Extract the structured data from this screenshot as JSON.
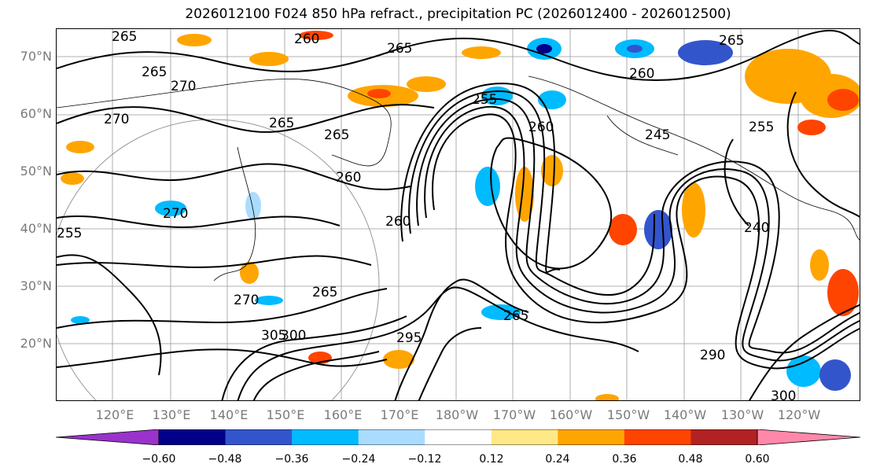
{
  "title": "2026012100 F024 850 hPa refract., precipitation PC (2026012400 - 2026012500)",
  "lat_labels": [
    "70°N",
    "60°N",
    "50°N",
    "40°N",
    "30°N",
    "20°N"
  ],
  "lon_labels": [
    "120°E",
    "130°E",
    "140°E",
    "150°E",
    "160°E",
    "170°E",
    "180°W",
    "170°W",
    "160°W",
    "150°W",
    "140°W",
    "130°W",
    "120°W"
  ],
  "contour_labels": [
    "265",
    "260",
    "265",
    "265",
    "270",
    "270",
    "265",
    "265",
    "260",
    "255",
    "270",
    "260",
    "255",
    "260",
    "245",
    "265",
    "255",
    "240",
    "260",
    "265",
    "270",
    "265",
    "305",
    "300",
    "295",
    "290",
    "300"
  ],
  "colorbar": {
    "colors": [
      "#9933cc",
      "#000088",
      "#3355cc",
      "#00bbff",
      "#aadcff",
      "#ffffff",
      "#ffe888",
      "#ffa500",
      "#ff4400",
      "#b22222",
      "#ff88aa"
    ],
    "tick_labels": [
      "−0.60",
      "−0.48",
      "−0.36",
      "−0.24",
      "−0.12",
      "0.12",
      "0.24",
      "0.36",
      "0.48",
      "0.60"
    ]
  }
}
